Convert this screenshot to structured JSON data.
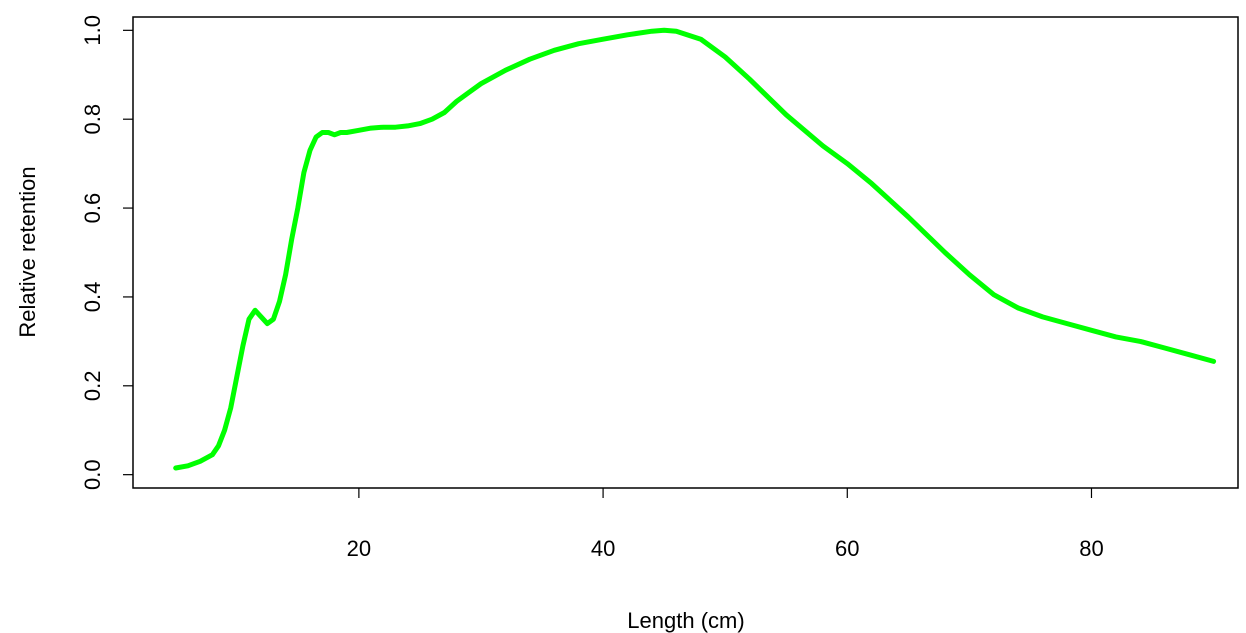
{
  "chart_data": {
    "type": "line",
    "title": "",
    "xlabel": "Length (cm)",
    "ylabel": "Relative retention",
    "xlim": [
      1.5,
      92
    ],
    "ylim": [
      -0.03,
      1.03
    ],
    "x_ticks": [
      20,
      40,
      60,
      80
    ],
    "x_tick_labels": [
      "20",
      "40",
      "60",
      "80"
    ],
    "y_ticks": [
      0.0,
      0.2,
      0.4,
      0.6,
      0.8,
      1.0
    ],
    "y_tick_labels": [
      "0.0",
      "0.2",
      "0.4",
      "0.6",
      "0.8",
      "1.0"
    ],
    "grid": false,
    "legend": "none",
    "line_color": "#00ff00",
    "series": [
      {
        "x": [
          5,
          6,
          7,
          8,
          8.5,
          9,
          9.5,
          10,
          10.5,
          11,
          11.5,
          12,
          12.5,
          13,
          13.5,
          14,
          14.5,
          15,
          15.5,
          16,
          16.5,
          17,
          17.5,
          18,
          18.5,
          19,
          20,
          21,
          22,
          23,
          24,
          25,
          26,
          27,
          28,
          29,
          30,
          32,
          34,
          36,
          38,
          40,
          42,
          44,
          45,
          46,
          48,
          50,
          52,
          55,
          58,
          60,
          62,
          65,
          68,
          70,
          72,
          74,
          76,
          78,
          80,
          82,
          84,
          86,
          88,
          90
        ],
        "values": [
          0.015,
          0.02,
          0.03,
          0.045,
          0.065,
          0.1,
          0.15,
          0.22,
          0.29,
          0.35,
          0.37,
          0.355,
          0.34,
          0.35,
          0.39,
          0.45,
          0.53,
          0.6,
          0.68,
          0.73,
          0.76,
          0.77,
          0.77,
          0.765,
          0.77,
          0.77,
          0.775,
          0.78,
          0.782,
          0.782,
          0.785,
          0.79,
          0.8,
          0.815,
          0.84,
          0.86,
          0.88,
          0.91,
          0.935,
          0.955,
          0.97,
          0.98,
          0.99,
          0.998,
          1.0,
          0.998,
          0.98,
          0.94,
          0.89,
          0.81,
          0.74,
          0.7,
          0.655,
          0.58,
          0.5,
          0.45,
          0.405,
          0.375,
          0.355,
          0.34,
          0.325,
          0.31,
          0.3,
          0.285,
          0.27,
          0.255
        ]
      }
    ]
  }
}
